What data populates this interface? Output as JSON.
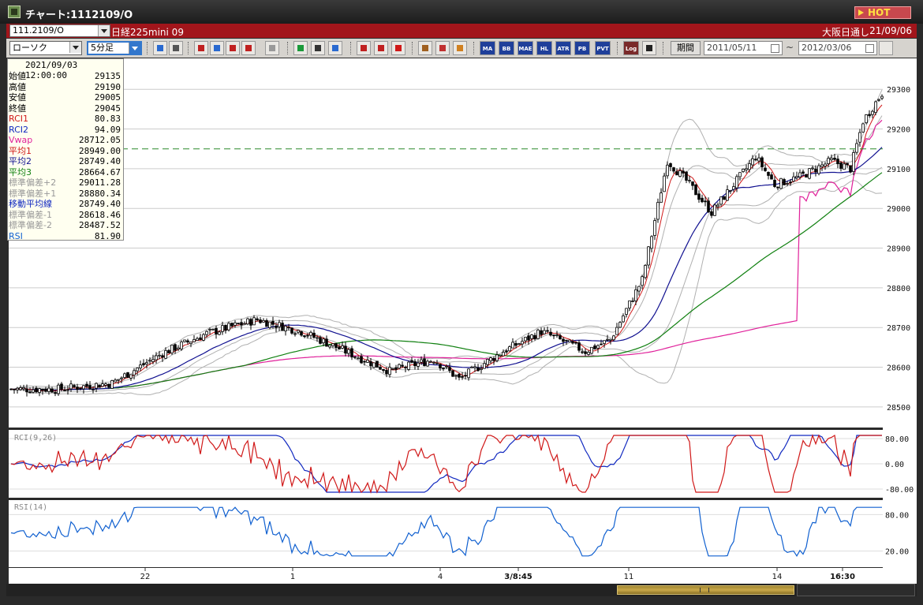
{
  "window": {
    "title": "チャート:1112109/O",
    "hot_label": "HOT"
  },
  "info_bar": {
    "symbol": "111.2109/O",
    "instrument": "日経225mini 09",
    "session": "大阪日通し",
    "date": "21/09/06"
  },
  "toolbar": {
    "chart_type": "ローソク",
    "timeframe": "5分足",
    "text_buttons": [
      "MA",
      "BB",
      "MAE",
      "HL",
      "ATR",
      "PB",
      "PVT",
      "Log"
    ],
    "period_label": "期間",
    "date_from": "2011/05/11",
    "tilde": "~",
    "date_to": "2012/03/06"
  },
  "data_window": {
    "datetime": "2021/09/03  12:00:00",
    "rows": [
      {
        "label": "始値",
        "value": "29135",
        "color": "#000000"
      },
      {
        "label": "高値",
        "value": "29190",
        "color": "#000000"
      },
      {
        "label": "安値",
        "value": "29005",
        "color": "#000000"
      },
      {
        "label": "終値",
        "value": "29045",
        "color": "#000000"
      },
      {
        "label": "RCI1",
        "value": "80.83",
        "color": "#d01818"
      },
      {
        "label": "RCI2",
        "value": "94.09",
        "color": "#1028c0"
      },
      {
        "label": "Vwap",
        "value": "28712.05",
        "color": "#e0209a"
      },
      {
        "label": "平均1",
        "value": "28949.00",
        "color": "#d01818"
      },
      {
        "label": "平均2",
        "value": "28749.40",
        "color": "#101090"
      },
      {
        "label": "平均3",
        "value": "28664.67",
        "color": "#108010"
      },
      {
        "label": "標準偏差+2",
        "value": "29011.28",
        "color": "#999999"
      },
      {
        "label": "標準偏差+1",
        "value": "28880.34",
        "color": "#999999"
      },
      {
        "label": "移動平均線",
        "value": "28749.40",
        "color": "#1028c0"
      },
      {
        "label": "標準偏差-1",
        "value": "28618.46",
        "color": "#999999"
      },
      {
        "label": "標準偏差-2",
        "value": "28487.52",
        "color": "#999999"
      },
      {
        "label": "RSI",
        "value": "81.90",
        "color": "#1060d0"
      }
    ]
  },
  "chart_data": {
    "type": "candlestick",
    "price_axis": {
      "ticks": [
        29300,
        29200,
        29100,
        29000,
        28900,
        28800,
        28700,
        28600,
        28500
      ],
      "range": [
        28460,
        29370
      ]
    },
    "time_axis_labels": [
      "22",
      "1",
      "4",
      "3/8:45",
      "11",
      "14",
      "16:30"
    ],
    "reference_price": 29150,
    "rci_panel": {
      "label": "RCI(9,26)",
      "ticks": [
        "80.00",
        "0.00",
        "-80.00"
      ],
      "range": [
        -100,
        100
      ]
    },
    "rsi_panel": {
      "label": "RSI(14)",
      "ticks": [
        "80.00",
        "20.00"
      ],
      "range": [
        0,
        100
      ]
    },
    "colors": {
      "candle_up": "#ffffff",
      "candle_down": "#000000",
      "ma_short": "#d01818",
      "ma_mid": "#101090",
      "ma_long": "#108010",
      "vwap": "#e0209a",
      "bands": "#b0b0b0",
      "rci_fast": "#d01818",
      "rci_slow": "#1028c0",
      "rsi": "#1060d0"
    },
    "keypoints": [
      {
        "i": 0,
        "p": 28545
      },
      {
        "i": 15,
        "p": 28545
      },
      {
        "i": 32,
        "p": 28560
      },
      {
        "i": 48,
        "p": 28635
      },
      {
        "i": 62,
        "p": 28685
      },
      {
        "i": 78,
        "p": 28720
      },
      {
        "i": 92,
        "p": 28690
      },
      {
        "i": 106,
        "p": 28640
      },
      {
        "i": 120,
        "p": 28590
      },
      {
        "i": 134,
        "p": 28620
      },
      {
        "i": 142,
        "p": 28570
      },
      {
        "i": 156,
        "p": 28640
      },
      {
        "i": 168,
        "p": 28690
      },
      {
        "i": 182,
        "p": 28640
      },
      {
        "i": 190,
        "p": 28670
      },
      {
        "i": 200,
        "p": 28820
      },
      {
        "i": 208,
        "p": 29120
      },
      {
        "i": 214,
        "p": 29070
      },
      {
        "i": 222,
        "p": 28990
      },
      {
        "i": 230,
        "p": 29070
      },
      {
        "i": 236,
        "p": 29130
      },
      {
        "i": 242,
        "p": 29060
      },
      {
        "i": 250,
        "p": 29080
      },
      {
        "i": 260,
        "p": 29120
      },
      {
        "i": 266,
        "p": 29100
      },
      {
        "i": 270,
        "p": 29220
      },
      {
        "i": 276,
        "p": 29290
      }
    ]
  }
}
